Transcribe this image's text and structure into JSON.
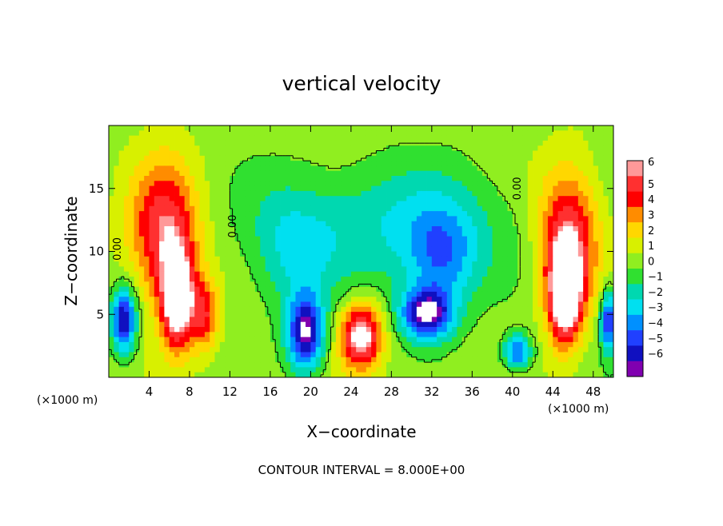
{
  "chart_data": {
    "type": "heatmap",
    "title": "vertical velocity",
    "xlabel": "X−coordinate",
    "ylabel": "Z−coordinate",
    "x_unit_left": "(×1000 m)",
    "x_unit_right": "(×1000 m)",
    "footer": "CONTOUR INTERVAL = 8.000E+00",
    "contour_label": "0.00",
    "xlim": [
      0,
      50
    ],
    "ylim": [
      0,
      20
    ],
    "x_ticks": [
      4,
      8,
      12,
      16,
      20,
      24,
      28,
      32,
      36,
      40,
      44,
      48
    ],
    "y_ticks": [
      5,
      10,
      15
    ],
    "colorbar": {
      "levels": [
        6,
        5,
        4,
        3,
        2,
        1,
        0,
        -1,
        -2,
        -3,
        -4,
        -5,
        -6
      ],
      "labels": [
        "6",
        "5",
        "4",
        "3",
        "2",
        "1",
        "0",
        "−1",
        "−2",
        "−3",
        "−4",
        "−5",
        "−6"
      ],
      "colors": [
        "#ff9999",
        "#ff3030",
        "#ff0000",
        "#ff8c00",
        "#ffd700",
        "#d8f000",
        "#90ee20",
        "#30e030",
        "#00d8b0",
        "#00e0f0",
        "#0090ff",
        "#2040ff",
        "#1010c0",
        "#8000b0"
      ]
    },
    "features": [
      {
        "cx": 5.5,
        "cz": 11.5,
        "sx": 3.4,
        "sz": 5.5,
        "value": 5.5
      },
      {
        "cx": 6.8,
        "cz": 6.2,
        "sx": 1.6,
        "sz": 3.8,
        "value": 8
      },
      {
        "cx": 9.5,
        "cz": 5.0,
        "sx": 1.4,
        "sz": 2.8,
        "value": 4
      },
      {
        "cx": 45.5,
        "cz": 11.0,
        "sx": 3.0,
        "sz": 5.5,
        "value": 5.5
      },
      {
        "cx": 45.2,
        "cz": 6.5,
        "sx": 1.6,
        "sz": 3.8,
        "value": 8
      },
      {
        "cx": 25.0,
        "cz": 3.3,
        "sx": 2.0,
        "sz": 2.6,
        "value": 7
      },
      {
        "cx": 19.5,
        "cz": 3.5,
        "sx": 1.8,
        "sz": 3.0,
        "value": -7
      },
      {
        "cx": 31.5,
        "cz": 5.0,
        "sx": 2.6,
        "sz": 2.0,
        "value": -7
      },
      {
        "cx": 1.5,
        "cz": 4.5,
        "sx": 1.2,
        "sz": 2.5,
        "value": -7
      },
      {
        "cx": 49.5,
        "cz": 4.5,
        "sx": 0.8,
        "sz": 2.5,
        "value": -6
      },
      {
        "cx": 40.5,
        "cz": 2.0,
        "sx": 1.4,
        "sz": 1.4,
        "value": -5
      },
      {
        "cx": 28.0,
        "cz": 12.0,
        "sx": 12.0,
        "sz": 5.0,
        "value": -2.5
      },
      {
        "cx": 18.0,
        "cz": 10.0,
        "sx": 4.0,
        "sz": 5.0,
        "value": -2.0
      },
      {
        "cx": 33.0,
        "cz": 9.5,
        "sx": 3.5,
        "sz": 4.0,
        "value": -3.5
      }
    ]
  }
}
